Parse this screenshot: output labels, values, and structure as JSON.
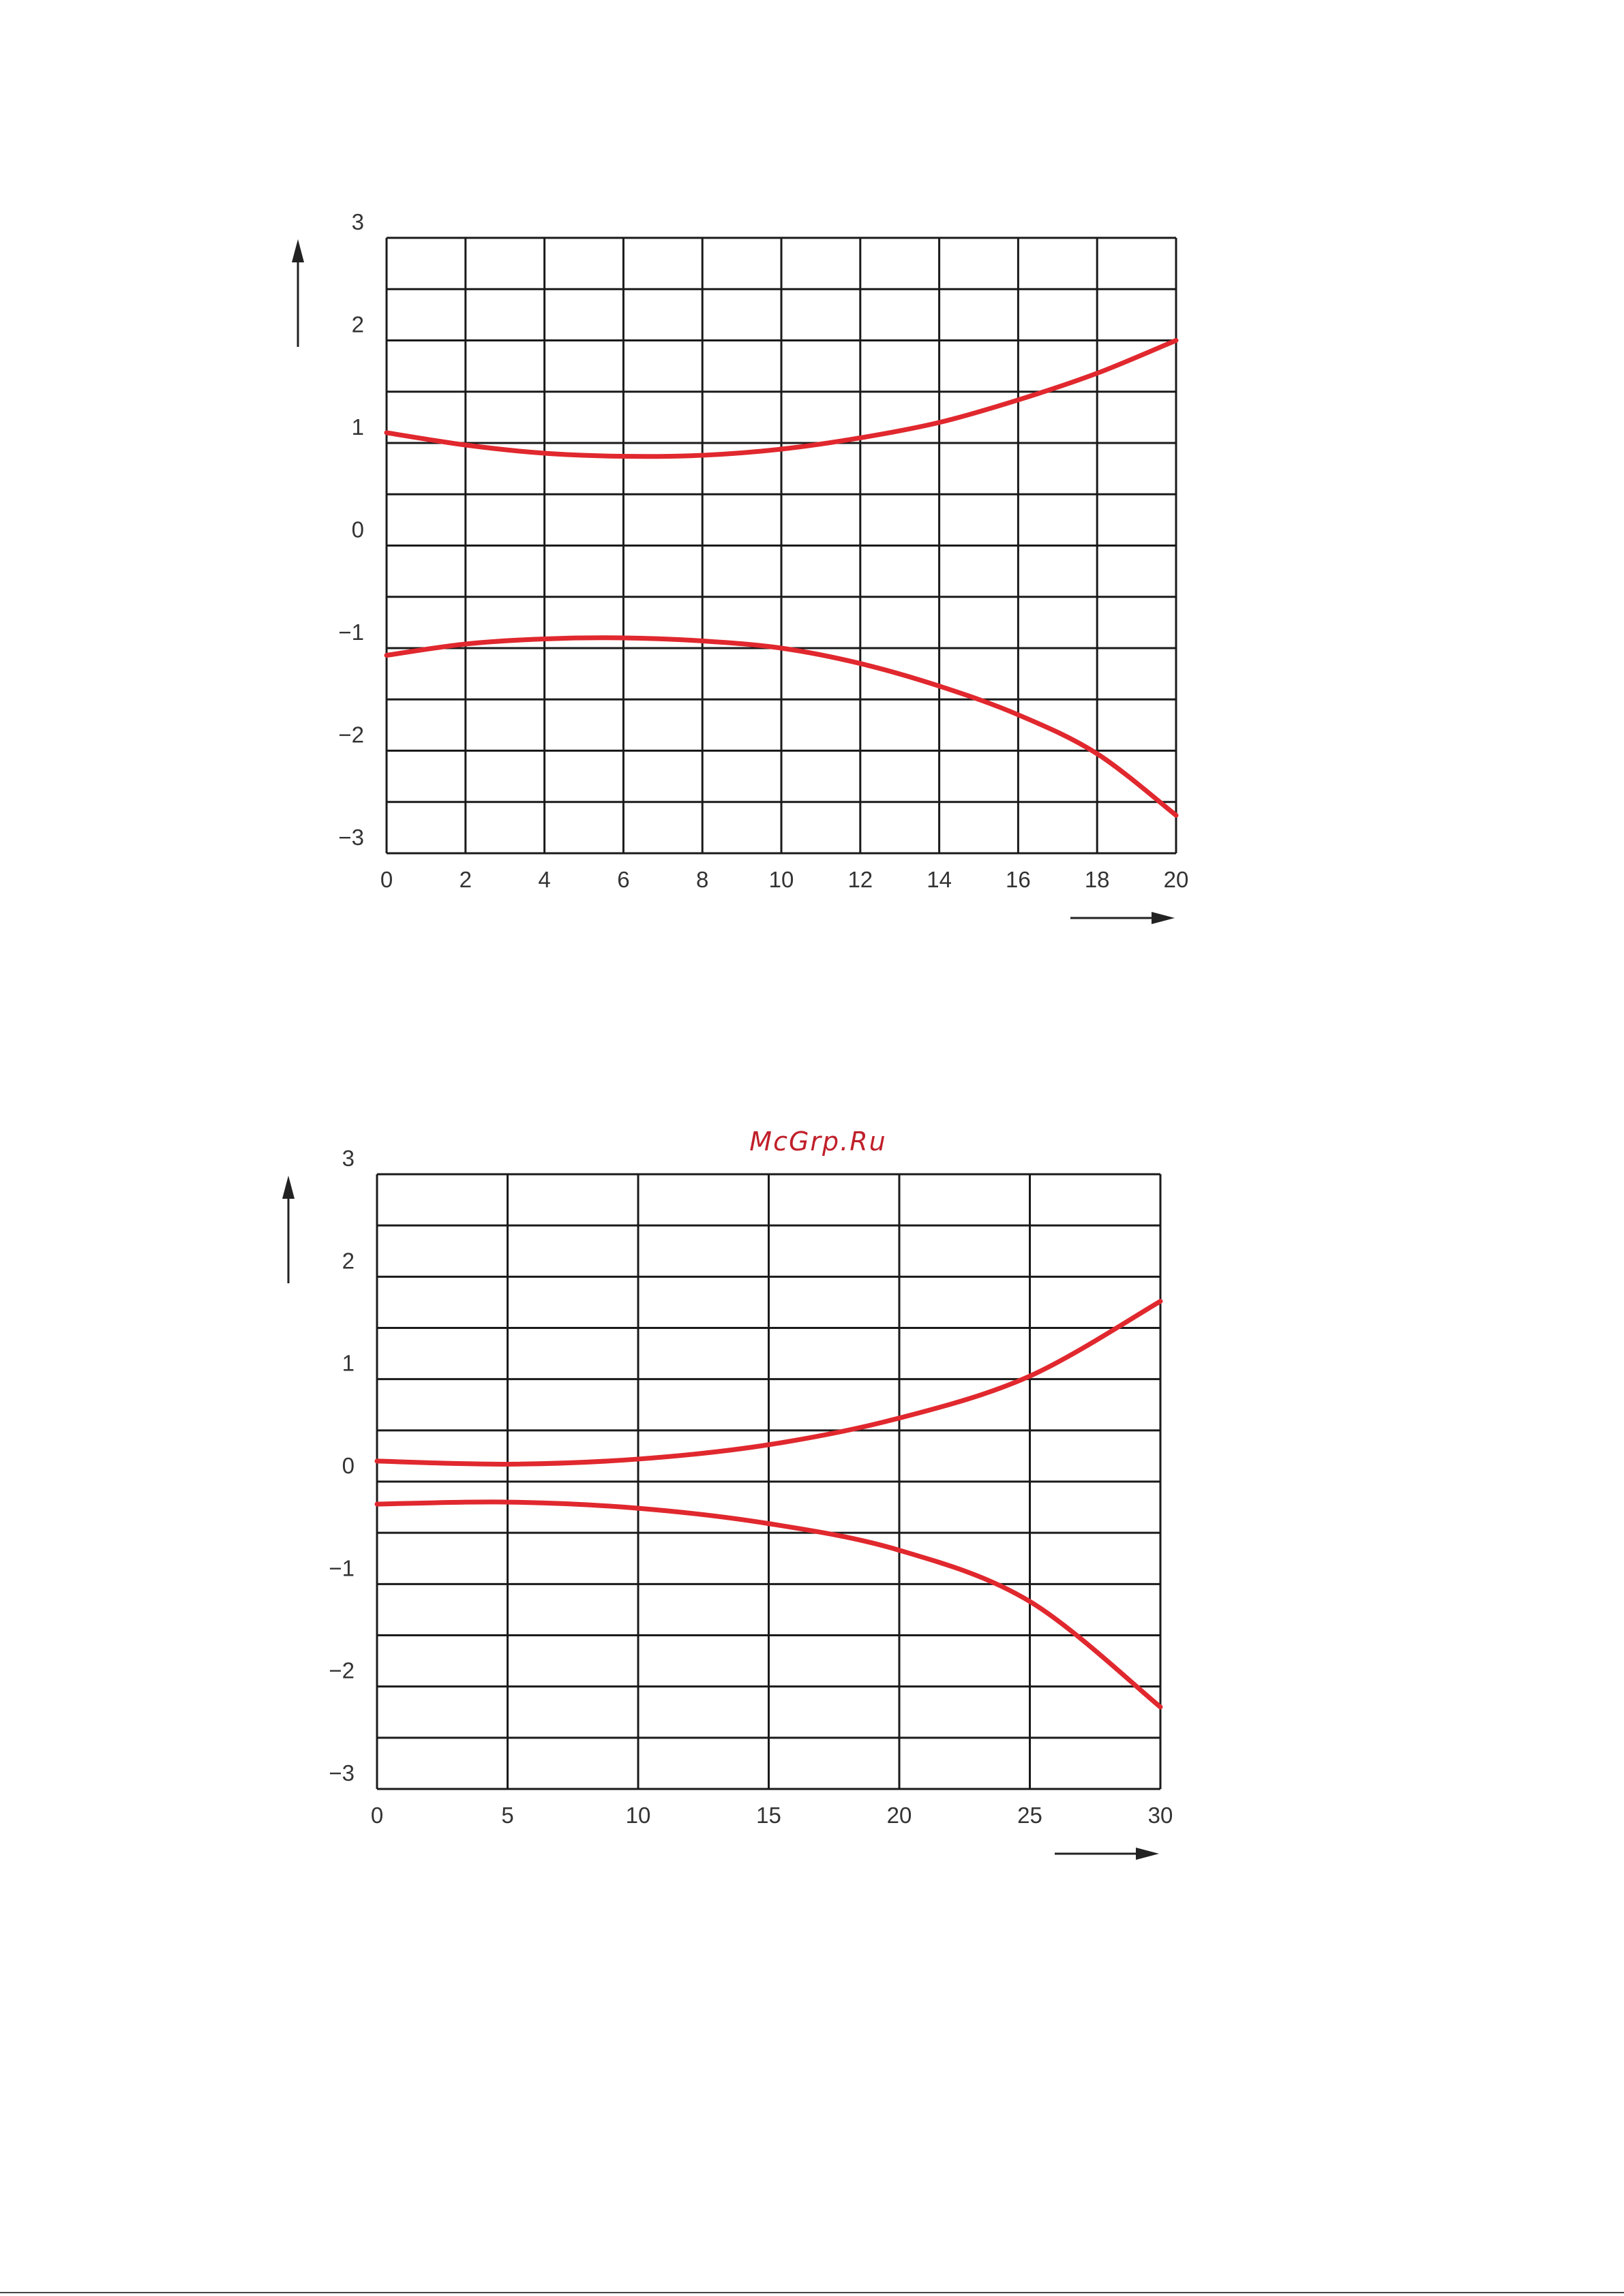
{
  "watermark": {
    "text": "McGrp.Ru",
    "color": "#c0202a"
  },
  "style": {
    "curve_color": "#e0282e",
    "grid_color": "#1a1a1a",
    "tick_color": "#333333"
  },
  "chart_data": [
    {
      "type": "line",
      "title": "",
      "xlabel": "",
      "ylabel": "",
      "xlim": [
        0,
        20
      ],
      "ylim": [
        -3,
        3
      ],
      "x_major_ticks": [
        0,
        2,
        4,
        6,
        8,
        10,
        12,
        14,
        16,
        18,
        20
      ],
      "y_major_ticks": [
        -3,
        -2,
        -1,
        0,
        1,
        2,
        3
      ],
      "y_minor_gridlines": [
        -2.5,
        -1.5,
        -0.5,
        0.5,
        1.5,
        2.5
      ],
      "x_tick_labels": [
        "0",
        "2",
        "4",
        "6",
        "8",
        "10",
        "12",
        "14",
        "16",
        "18",
        "20"
      ],
      "y_tick_labels": [
        "3",
        "2",
        "1",
        "0",
        "−1",
        "−2",
        "−3"
      ],
      "grid": true,
      "legend": "none",
      "axis_arrows": true,
      "series": [
        {
          "x": [
            0,
            2,
            4,
            6,
            8,
            10,
            12,
            14,
            16,
            18,
            20
          ],
          "y": [
            1.1,
            0.98,
            0.9,
            0.87,
            0.88,
            0.94,
            1.05,
            1.2,
            1.42,
            1.68,
            2.0
          ]
        },
        {
          "x": [
            0,
            2,
            4,
            6,
            8,
            10,
            12,
            14,
            16,
            18,
            20
          ],
          "y": [
            -1.07,
            -0.96,
            -0.91,
            -0.9,
            -0.93,
            -1.0,
            -1.15,
            -1.37,
            -1.65,
            -2.03,
            -2.63
          ]
        }
      ]
    },
    {
      "type": "line",
      "title": "",
      "xlabel": "",
      "ylabel": "",
      "xlim": [
        0,
        30
      ],
      "ylim": [
        -3,
        3
      ],
      "x_major_ticks": [
        0,
        5,
        10,
        15,
        20,
        25,
        30
      ],
      "y_major_ticks": [
        -3,
        -2,
        -1,
        0,
        1,
        2,
        3
      ],
      "y_minor_gridlines": [
        -2.5,
        -1.5,
        -0.5,
        0.5,
        1.5,
        2.5
      ],
      "x_tick_labels": [
        "0",
        "5",
        "10",
        "15",
        "20",
        "25",
        "30"
      ],
      "y_tick_labels": [
        "3",
        "2",
        "1",
        "0",
        "−1",
        "−2",
        "−3"
      ],
      "grid": true,
      "legend": "none",
      "axis_arrows": true,
      "series": [
        {
          "x": [
            0,
            5,
            10,
            15,
            20,
            25,
            30
          ],
          "y": [
            0.2,
            0.17,
            0.22,
            0.36,
            0.62,
            1.03,
            1.76
          ]
        },
        {
          "x": [
            0,
            5,
            10,
            15,
            20,
            25,
            30
          ],
          "y": [
            -0.22,
            -0.2,
            -0.26,
            -0.41,
            -0.67,
            -1.17,
            -2.2
          ]
        }
      ]
    }
  ]
}
